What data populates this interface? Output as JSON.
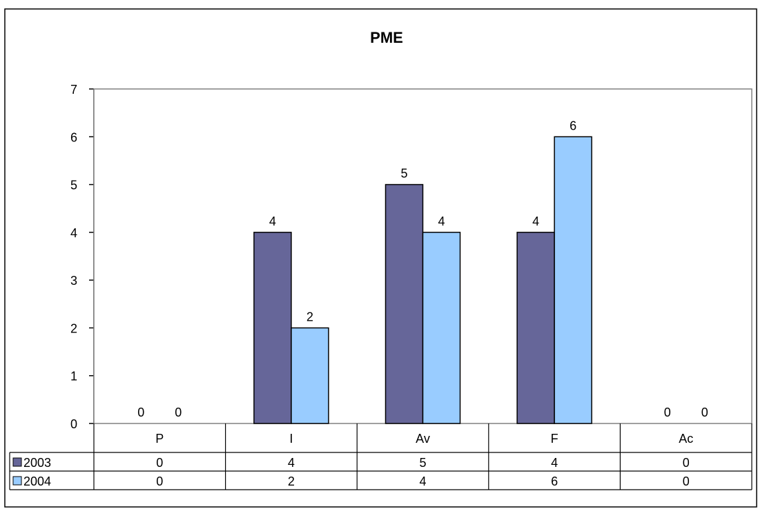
{
  "chart_data": {
    "type": "bar",
    "title": "PME",
    "categories": [
      "P",
      "I",
      "Av",
      "F",
      "Ac"
    ],
    "series": [
      {
        "name": "2003",
        "values": [
          0,
          4,
          5,
          4,
          0
        ],
        "color": "#666699"
      },
      {
        "name": "2004",
        "values": [
          0,
          2,
          4,
          6,
          0
        ],
        "color": "#99ccff"
      }
    ],
    "ylim": [
      0,
      7
    ],
    "yticks": [
      "0",
      "1",
      "2",
      "3",
      "4",
      "5",
      "6",
      "7"
    ],
    "data_labels": true,
    "grid": false,
    "legend": "data-table",
    "plot_background": "#ffffff"
  }
}
